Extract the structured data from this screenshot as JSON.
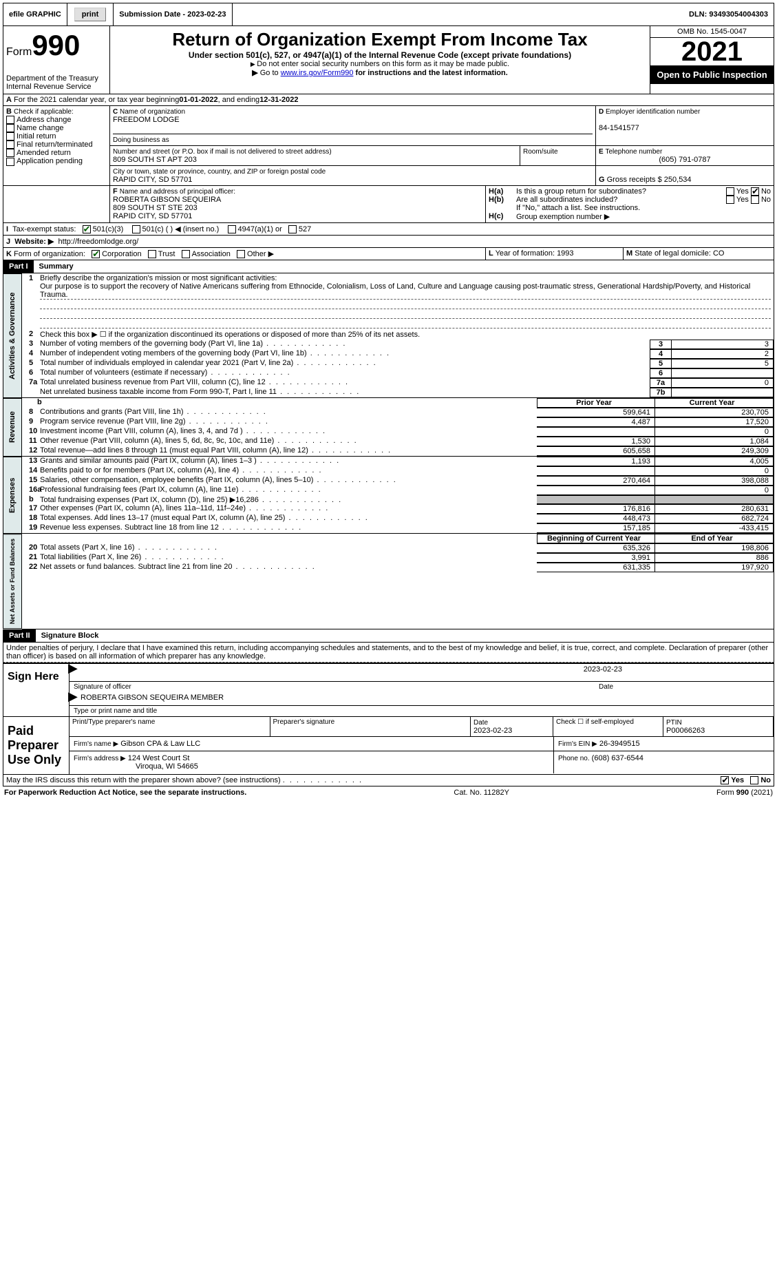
{
  "topbar": {
    "efile": "efile GRAPHIC",
    "print": "print",
    "submission": "Submission Date - 2023-02-23",
    "dln": "DLN: 93493054004303"
  },
  "header": {
    "form_label": "Form",
    "form_number": "990",
    "title": "Return of Organization Exempt From Income Tax",
    "subtitle": "Under section 501(c), 527, or 4947(a)(1) of the Internal Revenue Code (except private foundations)",
    "sub2": "Do not enter social security numbers on this form as it may be made public.",
    "sub3_prefix": "Go to ",
    "sub3_link": "www.irs.gov/Form990",
    "sub3_suffix": " for instructions and the latest information.",
    "dept": "Department of the Treasury",
    "irs": "Internal Revenue Service",
    "omb": "OMB No. 1545-0047",
    "year": "2021",
    "inspection": "Open to Public Inspection"
  },
  "A": {
    "text": "For the 2021 calendar year, or tax year beginning ",
    "begin": "01-01-2022",
    "mid": " , and ending ",
    "end": "12-31-2022"
  },
  "B": {
    "label": "Check if applicable:",
    "opts": [
      "Address change",
      "Name change",
      "Initial return",
      "Final return/terminated",
      "Amended return",
      "Application pending"
    ]
  },
  "C": {
    "label": "Name of organization",
    "name": "FREEDOM LODGE",
    "dba_label": "Doing business as",
    "street_label": "Number and street (or P.O. box if mail is not delivered to street address)",
    "street": "809 SOUTH ST APT 203",
    "room_label": "Room/suite",
    "city_label": "City or town, state or province, country, and ZIP or foreign postal code",
    "city": "RAPID CITY, SD  57701"
  },
  "D": {
    "label": "Employer identification number",
    "value": "84-1541577"
  },
  "E": {
    "label": "Telephone number",
    "value": "(605) 791-0787"
  },
  "G": {
    "label": "Gross receipts $",
    "value": "250,534"
  },
  "F": {
    "label": "Name and address of principal officer:",
    "line1": "ROBERTA GIBSON SEQUEIRA",
    "line2": "809 SOUTH ST STE 203",
    "line3": "RAPID CITY, SD  57701"
  },
  "H": {
    "a": "Is this a group return for subordinates?",
    "b": "Are all subordinates included?",
    "note": "If \"No,\" attach a list. See instructions.",
    "c": "Group exemption number ▶",
    "yes": "Yes",
    "no": "No"
  },
  "I": {
    "label": "Tax-exempt status:",
    "opts": [
      "501(c)(3)",
      "501(c) (  ) ◀ (insert no.)",
      "4947(a)(1) or",
      "527"
    ]
  },
  "J": {
    "label": "Website: ▶",
    "value": "http://freedomlodge.org/"
  },
  "K": {
    "label": "Form of organization:",
    "opts": [
      "Corporation",
      "Trust",
      "Association",
      "Other ▶"
    ]
  },
  "L": {
    "label": "Year of formation:",
    "value": "1993"
  },
  "M": {
    "label": "State of legal domicile:",
    "value": "CO"
  },
  "part1": {
    "hdr": "Part I",
    "title": "Summary",
    "line1_label": "Briefly describe the organization's mission or most significant activities:",
    "line1_text": "Our purpose is to support the recovery of Native Americans suffering from Ethnocide, Colonialism, Loss of Land, Culture and Language causing post-traumatic stress, Generational Hardship/Poverty, and Historical Trauma.",
    "line2": "Check this box ▶ ☐ if the organization discontinued its operations or disposed of more than 25% of its net assets.",
    "lines_ag": [
      {
        "n": "3",
        "t": "Number of voting members of the governing body (Part VI, line 1a)",
        "box": "3",
        "v": "3"
      },
      {
        "n": "4",
        "t": "Number of independent voting members of the governing body (Part VI, line 1b)",
        "box": "4",
        "v": "2"
      },
      {
        "n": "5",
        "t": "Total number of individuals employed in calendar year 2021 (Part V, line 2a)",
        "box": "5",
        "v": "5"
      },
      {
        "n": "6",
        "t": "Total number of volunteers (estimate if necessary)",
        "box": "6",
        "v": ""
      },
      {
        "n": "7a",
        "t": "Total unrelated business revenue from Part VIII, column (C), line 12",
        "box": "7a",
        "v": "0"
      },
      {
        "n": "",
        "t": "Net unrelated business taxable income from Form 990-T, Part I, line 11",
        "box": "7b",
        "v": ""
      }
    ],
    "col_prior": "Prior Year",
    "col_current": "Current Year",
    "revenue": [
      {
        "n": "8",
        "t": "Contributions and grants (Part VIII, line 1h)",
        "p": "599,641",
        "c": "230,705"
      },
      {
        "n": "9",
        "t": "Program service revenue (Part VIII, line 2g)",
        "p": "4,487",
        "c": "17,520"
      },
      {
        "n": "10",
        "t": "Investment income (Part VIII, column (A), lines 3, 4, and 7d )",
        "p": "",
        "c": "0"
      },
      {
        "n": "11",
        "t": "Other revenue (Part VIII, column (A), lines 5, 6d, 8c, 9c, 10c, and 11e)",
        "p": "1,530",
        "c": "1,084"
      },
      {
        "n": "12",
        "t": "Total revenue—add lines 8 through 11 (must equal Part VIII, column (A), line 12)",
        "p": "605,658",
        "c": "249,309"
      }
    ],
    "expenses": [
      {
        "n": "13",
        "t": "Grants and similar amounts paid (Part IX, column (A), lines 1–3 )",
        "p": "1,193",
        "c": "4,005"
      },
      {
        "n": "14",
        "t": "Benefits paid to or for members (Part IX, column (A), line 4)",
        "p": "",
        "c": "0"
      },
      {
        "n": "15",
        "t": "Salaries, other compensation, employee benefits (Part IX, column (A), lines 5–10)",
        "p": "270,464",
        "c": "398,088"
      },
      {
        "n": "16a",
        "t": "Professional fundraising fees (Part IX, column (A), line 11e)",
        "p": "",
        "c": "0"
      },
      {
        "n": "b",
        "t": "Total fundraising expenses (Part IX, column (D), line 25) ▶16,286",
        "p": "GREY",
        "c": "GREY"
      },
      {
        "n": "17",
        "t": "Other expenses (Part IX, column (A), lines 11a–11d, 11f–24e)",
        "p": "176,816",
        "c": "280,631"
      },
      {
        "n": "18",
        "t": "Total expenses. Add lines 13–17 (must equal Part IX, column (A), line 25)",
        "p": "448,473",
        "c": "682,724"
      },
      {
        "n": "19",
        "t": "Revenue less expenses. Subtract line 18 from line 12",
        "p": "157,185",
        "c": "-433,415"
      }
    ],
    "col_begin": "Beginning of Current Year",
    "col_end": "End of Year",
    "netassets": [
      {
        "n": "20",
        "t": "Total assets (Part X, line 16)",
        "p": "635,326",
        "c": "198,806"
      },
      {
        "n": "21",
        "t": "Total liabilities (Part X, line 26)",
        "p": "3,991",
        "c": "886"
      },
      {
        "n": "22",
        "t": "Net assets or fund balances. Subtract line 21 from line 20",
        "p": "631,335",
        "c": "197,920"
      }
    ],
    "vtabs": {
      "ag": "Activities & Governance",
      "rev": "Revenue",
      "exp": "Expenses",
      "na": "Net Assets or Fund Balances"
    }
  },
  "part2": {
    "hdr": "Part II",
    "title": "Signature Block",
    "decl": "Under penalties of perjury, I declare that I have examined this return, including accompanying schedules and statements, and to the best of my knowledge and belief, it is true, correct, and complete. Declaration of preparer (other than officer) is based on all information of which preparer has any knowledge.",
    "sign_here": "Sign Here",
    "sig_officer": "Signature of officer",
    "sig_date": "2023-02-23",
    "date_lbl": "Date",
    "name_title": "ROBERTA GIBSON SEQUEIRA  MEMBER",
    "name_lbl": "Type or print name and title",
    "paid": "Paid Preparer Use Only",
    "pp_name_lbl": "Print/Type preparer's name",
    "pp_sig_lbl": "Preparer's signature",
    "pp_date_lbl": "Date",
    "pp_date": "2023-02-23",
    "pp_check": "Check ☐ if self-employed",
    "ptin_lbl": "PTIN",
    "ptin": "P00066263",
    "firm_name_lbl": "Firm's name   ▶",
    "firm_name": "Gibson CPA & Law LLC",
    "firm_ein_lbl": "Firm's EIN ▶",
    "firm_ein": "26-3949515",
    "firm_addr_lbl": "Firm's address ▶",
    "firm_addr1": "124 West Court St",
    "firm_addr2": "Viroqua, WI  54665",
    "phone_lbl": "Phone no.",
    "phone": "(608) 637-6544",
    "discuss": "May the IRS discuss this return with the preparer shown above? (see instructions)"
  },
  "footer": {
    "pra": "For Paperwork Reduction Act Notice, see the separate instructions.",
    "cat": "Cat. No. 11282Y",
    "form": "Form 990 (2021)"
  }
}
